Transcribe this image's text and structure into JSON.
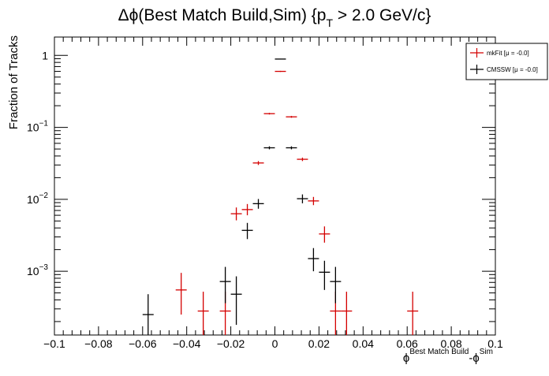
{
  "chart_data": {
    "type": "scatter",
    "title": {
      "main": "Δϕ(Best Match Build,Sim) {p",
      "sub": "T",
      "rest": " > 2.0 GeV/c}"
    },
    "xlabel": {
      "phi1": "ϕ",
      "sup1": "Best Match Build",
      "mid": "-ϕ",
      "sup2": "Sim"
    },
    "ylabel": "Fraction of Tracks",
    "xlim": [
      -0.1,
      0.1
    ],
    "ylim": [
      0.00013,
      1.8
    ],
    "ylog": true,
    "grid": false,
    "legend_position": "top-right",
    "x_ticks": [
      {
        "value": -0.1,
        "label": "−0.1"
      },
      {
        "value": -0.08,
        "label": "−0.08"
      },
      {
        "value": -0.06,
        "label": "−0.06"
      },
      {
        "value": -0.04,
        "label": "−0.04"
      },
      {
        "value": -0.02,
        "label": "−0.02"
      },
      {
        "value": 0,
        "label": "0"
      },
      {
        "value": 0.02,
        "label": "0.02"
      },
      {
        "value": 0.04,
        "label": "0.04"
      },
      {
        "value": 0.06,
        "label": "0.06"
      },
      {
        "value": 0.08,
        "label": "0.08"
      },
      {
        "value": 0.1,
        "label": "0.1"
      }
    ],
    "y_ticks": [
      {
        "value": 1,
        "base": "1",
        "exp": ""
      },
      {
        "value": 0.1,
        "base": "10",
        "exp": "−1"
      },
      {
        "value": 0.01,
        "base": "10",
        "exp": "−2"
      },
      {
        "value": 0.001,
        "base": "10",
        "exp": "−3"
      }
    ],
    "bin_half_width": 0.0025,
    "series": [
      {
        "name": "mkFit  [μ = -0.0]",
        "color": "#d40000",
        "points": [
          {
            "x": -0.0425,
            "y": 0.00055,
            "ylo": 0.00025,
            "yhi": 0.00095
          },
          {
            "x": -0.0325,
            "y": 0.00028,
            "ylo": 8e-05,
            "yhi": 0.00052
          },
          {
            "x": -0.0225,
            "y": 0.00028,
            "ylo": 8e-05,
            "yhi": 0.00052
          },
          {
            "x": -0.0175,
            "y": 0.0063,
            "ylo": 0.0051,
            "yhi": 0.0077
          },
          {
            "x": -0.0125,
            "y": 0.0072,
            "ylo": 0.006,
            "yhi": 0.0086
          },
          {
            "x": -0.0075,
            "y": 0.032,
            "ylo": 0.03,
            "yhi": 0.034
          },
          {
            "x": -0.0025,
            "y": 0.155,
            "ylo": 0.151,
            "yhi": 0.159
          },
          {
            "x": 0.0025,
            "y": 0.6,
            "ylo": 0.59,
            "yhi": 0.61
          },
          {
            "x": 0.0075,
            "y": 0.14,
            "ylo": 0.136,
            "yhi": 0.144
          },
          {
            "x": 0.0125,
            "y": 0.036,
            "ylo": 0.034,
            "yhi": 0.038
          },
          {
            "x": 0.0175,
            "y": 0.0095,
            "ylo": 0.0083,
            "yhi": 0.0108
          },
          {
            "x": 0.0225,
            "y": 0.0033,
            "ylo": 0.0025,
            "yhi": 0.0042
          },
          {
            "x": 0.0275,
            "y": 0.00028,
            "ylo": 8e-05,
            "yhi": 0.00052
          },
          {
            "x": 0.0325,
            "y": 0.00028,
            "ylo": 8e-05,
            "yhi": 0.00052
          },
          {
            "x": 0.0625,
            "y": 0.00028,
            "ylo": 8e-05,
            "yhi": 0.00052
          }
        ]
      },
      {
        "name": "CMSSW  [μ = -0.0]",
        "color": "#000000",
        "points": [
          {
            "x": -0.0575,
            "y": 0.00025,
            "ylo": 7e-05,
            "yhi": 0.00048
          },
          {
            "x": -0.0225,
            "y": 0.00072,
            "ylo": 0.00036,
            "yhi": 0.00115
          },
          {
            "x": -0.0175,
            "y": 0.00048,
            "ylo": 0.00018,
            "yhi": 0.00085
          },
          {
            "x": -0.0125,
            "y": 0.0037,
            "ylo": 0.0028,
            "yhi": 0.0047
          },
          {
            "x": -0.0075,
            "y": 0.0087,
            "ylo": 0.0074,
            "yhi": 0.0101
          },
          {
            "x": -0.0025,
            "y": 0.052,
            "ylo": 0.0495,
            "yhi": 0.0545
          },
          {
            "x": 0.0025,
            "y": 0.89,
            "ylo": 0.88,
            "yhi": 0.9
          },
          {
            "x": 0.0075,
            "y": 0.052,
            "ylo": 0.0495,
            "yhi": 0.0545
          },
          {
            "x": 0.0125,
            "y": 0.0102,
            "ylo": 0.0088,
            "yhi": 0.0117
          },
          {
            "x": 0.0175,
            "y": 0.0015,
            "ylo": 0.001,
            "yhi": 0.0021
          },
          {
            "x": 0.0225,
            "y": 0.00097,
            "ylo": 0.00055,
            "yhi": 0.0014
          },
          {
            "x": 0.0275,
            "y": 0.00072,
            "ylo": 0.00036,
            "yhi": 0.00115
          }
        ]
      }
    ]
  }
}
